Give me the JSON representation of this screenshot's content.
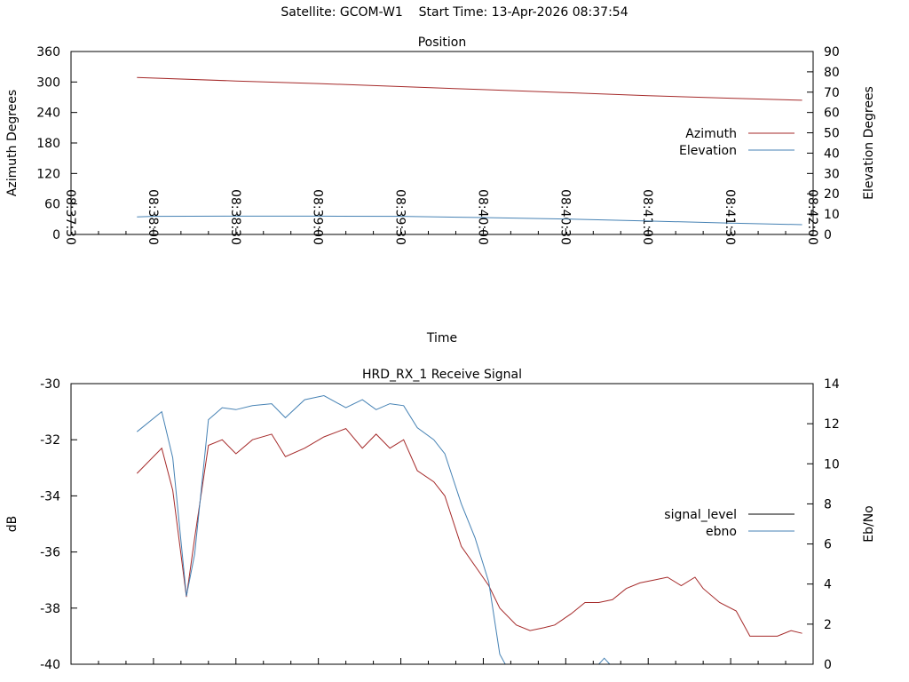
{
  "header": {
    "satellite_label": "Satellite: GCOM-W1",
    "start_time_label": "Start Time: 13-Apr-2026 08:37:54"
  },
  "chart_data": [
    {
      "type": "line",
      "title": "Position",
      "xlabel": "Time",
      "ylabel": "Azimuth Degrees",
      "y2label": "Elevation Degrees",
      "x_ticks": [
        "08:37:30",
        "08:38:00",
        "08:38:30",
        "08:39:00",
        "08:39:30",
        "08:40:00",
        "08:40:30",
        "08:41:00",
        "08:41:30",
        "08:42:00"
      ],
      "xlim": [
        "08:37:30",
        "08:42:00"
      ],
      "ylim": [
        0,
        360
      ],
      "y2lim": [
        0,
        90
      ],
      "y_ticks": [
        "0",
        "60",
        "120",
        "180",
        "240",
        "300",
        "360"
      ],
      "y2_ticks": [
        "0",
        "10",
        "20",
        "30",
        "40",
        "50",
        "60",
        "70",
        "80",
        "90"
      ],
      "legend_position": "right",
      "series": [
        {
          "name": "Azimuth",
          "axis": "y",
          "color": "#a52a2a",
          "x": [
            "08:37:54",
            "08:38:30",
            "08:39:00",
            "08:39:30",
            "08:40:00",
            "08:40:30",
            "08:41:00",
            "08:41:30",
            "08:41:56"
          ],
          "values": [
            309,
            302,
            297,
            291,
            285,
            279,
            273,
            268,
            264
          ]
        },
        {
          "name": "Elevation",
          "axis": "y2",
          "color": "#4682b4",
          "x": [
            "08:37:54",
            "08:38:00",
            "08:38:30",
            "08:39:00",
            "08:39:30",
            "08:40:00",
            "08:40:30",
            "08:41:00",
            "08:41:30",
            "08:41:56"
          ],
          "values": [
            8.6,
            8.9,
            9.0,
            9.0,
            8.9,
            8.3,
            7.6,
            6.6,
            5.6,
            4.8
          ]
        }
      ]
    },
    {
      "type": "line",
      "title": "HRD_RX_1 Receive Signal",
      "xlabel": "",
      "ylabel": "dB",
      "y2label": "Eb/No",
      "ylim": [
        -40,
        -30
      ],
      "y2lim": [
        0,
        14
      ],
      "y_ticks": [
        "-40",
        "-38",
        "-36",
        "-34",
        "-32",
        "-30"
      ],
      "y2_ticks": [
        "0",
        "2",
        "4",
        "6",
        "8",
        "10",
        "12",
        "14"
      ],
      "legend_position": "right",
      "series": [
        {
          "name": "signal_level",
          "axis": "y",
          "color": "#a52a2a",
          "x": [
            "08:37:54",
            "08:38:03",
            "08:38:07",
            "08:38:12",
            "08:38:15",
            "08:38:20",
            "08:38:25",
            "08:38:30",
            "08:38:36",
            "08:38:43",
            "08:38:48",
            "08:38:55",
            "08:39:02",
            "08:39:10",
            "08:39:16",
            "08:39:21",
            "08:39:26",
            "08:39:31",
            "08:39:36",
            "08:39:42",
            "08:39:46",
            "08:39:52",
            "08:39:57",
            "08:40:02",
            "08:40:06",
            "08:40:12",
            "08:40:17",
            "08:40:22",
            "08:40:26",
            "08:40:32",
            "08:40:37",
            "08:40:42",
            "08:40:47",
            "08:40:52",
            "08:40:57",
            "08:41:02",
            "08:41:07",
            "08:41:12",
            "08:41:17",
            "08:41:20",
            "08:41:26",
            "08:41:32",
            "08:41:37",
            "08:41:42",
            "08:41:47",
            "08:41:52",
            "08:41:56"
          ],
          "values": [
            -33.2,
            -32.3,
            -33.8,
            -37.6,
            -35.5,
            -32.2,
            -32.0,
            -32.5,
            -32.0,
            -31.8,
            -32.6,
            -32.3,
            -31.9,
            -31.6,
            -32.3,
            -31.8,
            -32.3,
            -32.0,
            -33.1,
            -33.5,
            -34.0,
            -35.8,
            -36.5,
            -37.2,
            -38.0,
            -38.6,
            -38.8,
            -38.7,
            -38.6,
            -38.2,
            -37.8,
            -37.8,
            -37.7,
            -37.3,
            -37.1,
            -37.0,
            -36.9,
            -37.2,
            -36.9,
            -37.3,
            -37.8,
            -38.1,
            -39.0,
            -39.0,
            -39.0,
            -38.8,
            -38.9
          ]
        },
        {
          "name": "ebno",
          "axis": "y2",
          "color": "#4682b4",
          "x": [
            "08:37:54",
            "08:38:03",
            "08:38:07",
            "08:38:12",
            "08:38:15",
            "08:38:20",
            "08:38:25",
            "08:38:30",
            "08:38:36",
            "08:38:43",
            "08:38:48",
            "08:38:55",
            "08:39:02",
            "08:39:10",
            "08:39:16",
            "08:39:21",
            "08:39:26",
            "08:39:31",
            "08:39:36",
            "08:39:42",
            "08:39:46",
            "08:39:52",
            "08:39:57",
            "08:40:02",
            "08:40:06",
            "08:40:08",
            "08:40:42",
            "08:40:44",
            "08:40:46"
          ],
          "values": [
            11.6,
            12.6,
            10.3,
            3.4,
            5.5,
            12.2,
            12.8,
            12.7,
            12.9,
            13.0,
            12.3,
            13.2,
            13.4,
            12.8,
            13.2,
            12.7,
            13.0,
            12.9,
            11.8,
            11.2,
            10.5,
            8.0,
            6.3,
            4.1,
            0.5,
            0.0,
            0.0,
            0.3,
            0.0
          ]
        }
      ]
    }
  ]
}
